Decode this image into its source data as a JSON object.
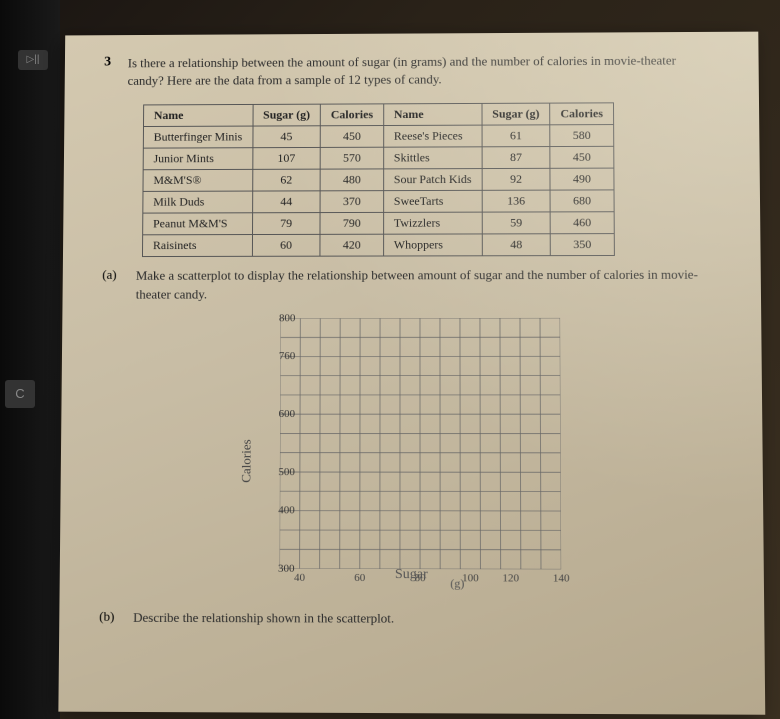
{
  "question": {
    "number": "3",
    "text": "Is there a relationship between the amount of sugar (in grams) and the number of calories in movie-theater candy? Here are the data from a sample of 12 types of candy."
  },
  "table": {
    "headers": [
      "Name",
      "Sugar (g)",
      "Calories",
      "Name",
      "Sugar (g)",
      "Calories"
    ],
    "rows": [
      [
        "Butterfinger Minis",
        "45",
        "450",
        "Reese's Pieces",
        "61",
        "580"
      ],
      [
        "Junior Mints",
        "107",
        "570",
        "Skittles",
        "87",
        "450"
      ],
      [
        "M&M'S®",
        "62",
        "480",
        "Sour Patch Kids",
        "92",
        "490"
      ],
      [
        "Milk Duds",
        "44",
        "370",
        "SweeTarts",
        "136",
        "680"
      ],
      [
        "Peanut M&M'S",
        "79",
        "790",
        "Twizzlers",
        "59",
        "460"
      ],
      [
        "Raisinets",
        "60",
        "420",
        "Whoppers",
        "48",
        "350"
      ]
    ]
  },
  "parts": {
    "a": {
      "label": "(a)",
      "text": "Make a scatterplot to display the relationship between amount of sugar and the number of calories in movie-theater candy."
    },
    "b": {
      "label": "(b)",
      "text": "Describe the relationship shown in the scatterplot."
    }
  },
  "chart": {
    "type": "scatter-grid",
    "grid_cols": 14,
    "grid_rows": 13,
    "yticks": [
      {
        "label": "800",
        "row": 0
      },
      {
        "label": "760",
        "row": 2
      },
      {
        "label": "600",
        "row": 5
      },
      {
        "label": "500",
        "row": 8
      },
      {
        "label": "400",
        "row": 10
      },
      {
        "label": "300",
        "row": 13
      }
    ],
    "xticks": [
      {
        "label": "40",
        "col": 1
      },
      {
        "label": "60",
        "col": 4
      },
      {
        "label": "80",
        "col": 7
      },
      {
        "label": "100",
        "col": 9.5
      },
      {
        "label": "120",
        "col": 11.5
      },
      {
        "label": "140",
        "col": 14
      }
    ],
    "y_axis_title": "Calories",
    "x_axis_title": "Sugar",
    "x_unit": "(g)",
    "grid_color": "#666666",
    "handwriting_color": "#555555",
    "background_color": "transparent"
  },
  "keyboard": {
    "key1": "▷||",
    "key2": "C"
  }
}
